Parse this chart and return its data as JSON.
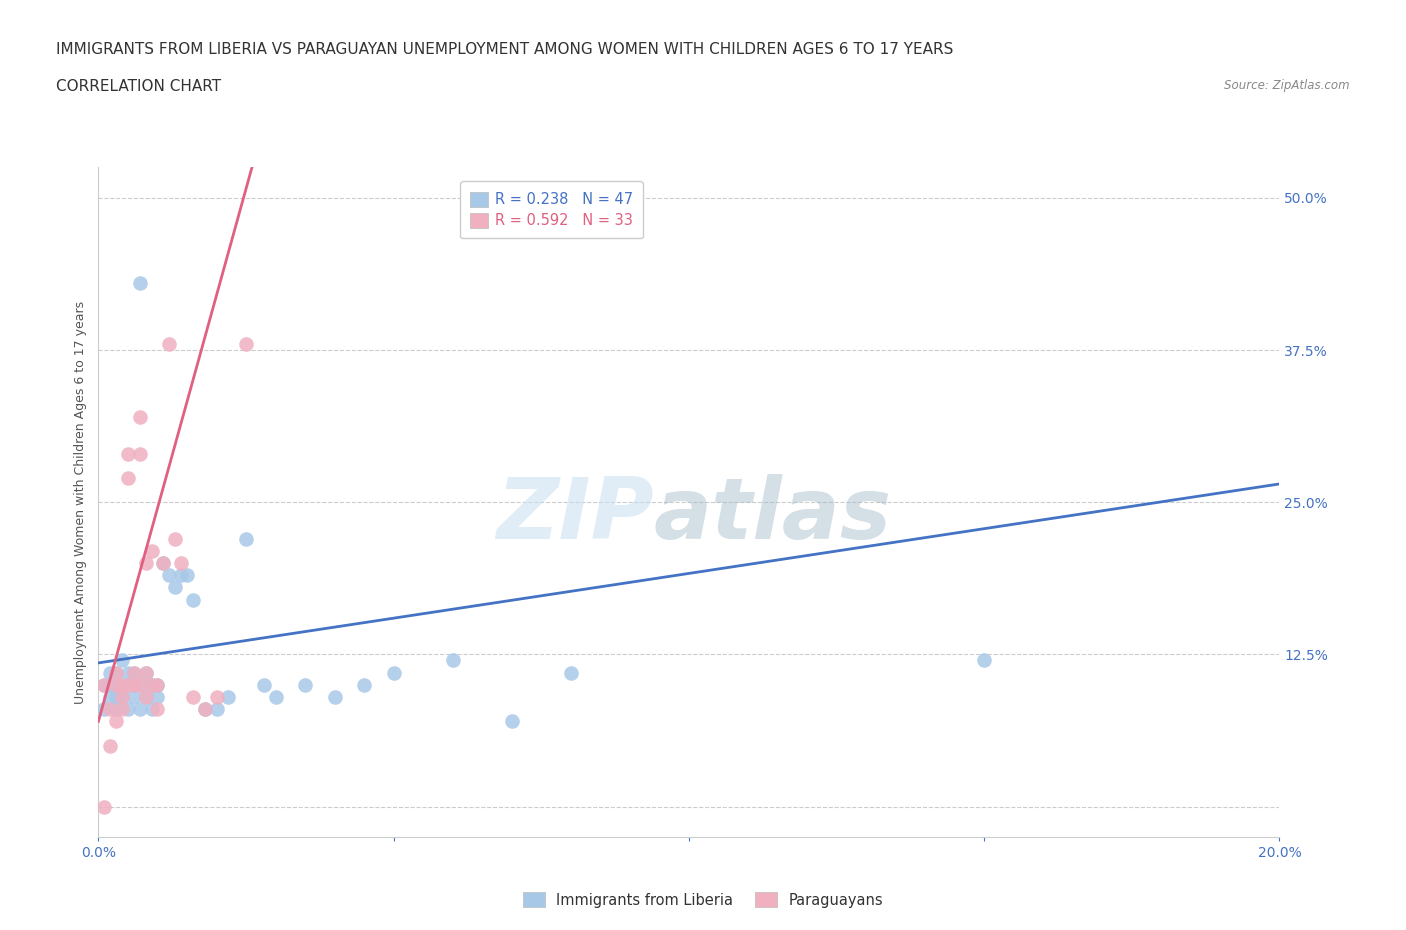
{
  "title_line1": "IMMIGRANTS FROM LIBERIA VS PARAGUAYAN UNEMPLOYMENT AMONG WOMEN WITH CHILDREN AGES 6 TO 17 YEARS",
  "title_line2": "CORRELATION CHART",
  "source_text": "Source: ZipAtlas.com",
  "ylabel": "Unemployment Among Women with Children Ages 6 to 17 years",
  "watermark_zip": "ZIP",
  "watermark_atlas": "atlas",
  "xlim": [
    0.0,
    0.2
  ],
  "ylim": [
    -0.025,
    0.525
  ],
  "xticks": [
    0.0,
    0.05,
    0.1,
    0.15,
    0.2
  ],
  "xtick_labels": [
    "0.0%",
    "",
    "",
    "",
    "20.0%"
  ],
  "yticks": [
    0.0,
    0.125,
    0.25,
    0.375,
    0.5
  ],
  "ytick_labels": [
    "",
    "12.5%",
    "25.0%",
    "37.5%",
    "50.0%"
  ],
  "grid_color": "#cccccc",
  "background_color": "#ffffff",
  "blue_color": "#a8c8e8",
  "pink_color": "#f0b0c0",
  "blue_line_color": "#4472c4",
  "pink_line_color": "#e06080",
  "legend_blue_label": "R = 0.238   N = 47",
  "legend_pink_label": "R = 0.592   N = 33",
  "legend_group_label_blue": "Immigrants from Liberia",
  "legend_group_label_pink": "Paraguayans",
  "title_fontsize": 11,
  "label_fontsize": 9,
  "tick_fontsize": 10,
  "axis_color": "#4472c4",
  "blue_scatter_x": [
    0.001,
    0.001,
    0.002,
    0.002,
    0.002,
    0.003,
    0.003,
    0.003,
    0.003,
    0.004,
    0.004,
    0.004,
    0.005,
    0.005,
    0.005,
    0.006,
    0.006,
    0.006,
    0.007,
    0.007,
    0.008,
    0.008,
    0.009,
    0.009,
    0.01,
    0.01,
    0.011,
    0.012,
    0.013,
    0.014,
    0.015,
    0.016,
    0.018,
    0.02,
    0.022,
    0.025,
    0.028,
    0.03,
    0.035,
    0.04,
    0.045,
    0.05,
    0.06,
    0.07,
    0.08,
    0.15,
    0.007
  ],
  "blue_scatter_y": [
    0.1,
    0.08,
    0.1,
    0.09,
    0.11,
    0.1,
    0.08,
    0.09,
    0.11,
    0.1,
    0.09,
    0.12,
    0.1,
    0.11,
    0.08,
    0.09,
    0.11,
    0.1,
    0.1,
    0.08,
    0.09,
    0.11,
    0.1,
    0.08,
    0.1,
    0.09,
    0.2,
    0.19,
    0.18,
    0.19,
    0.19,
    0.17,
    0.08,
    0.08,
    0.09,
    0.22,
    0.1,
    0.09,
    0.1,
    0.09,
    0.1,
    0.11,
    0.12,
    0.07,
    0.11,
    0.12,
    0.43
  ],
  "pink_scatter_x": [
    0.001,
    0.001,
    0.002,
    0.002,
    0.003,
    0.003,
    0.003,
    0.004,
    0.004,
    0.004,
    0.005,
    0.005,
    0.005,
    0.006,
    0.006,
    0.007,
    0.007,
    0.007,
    0.008,
    0.008,
    0.008,
    0.009,
    0.009,
    0.01,
    0.01,
    0.011,
    0.012,
    0.013,
    0.014,
    0.016,
    0.018,
    0.02,
    0.025
  ],
  "pink_scatter_y": [
    0.0,
    0.1,
    0.05,
    0.08,
    0.1,
    0.11,
    0.07,
    0.1,
    0.09,
    0.08,
    0.1,
    0.27,
    0.29,
    0.1,
    0.11,
    0.1,
    0.29,
    0.32,
    0.11,
    0.2,
    0.09,
    0.21,
    0.1,
    0.1,
    0.08,
    0.2,
    0.38,
    0.22,
    0.2,
    0.09,
    0.08,
    0.09,
    0.38
  ],
  "blue_line_x0": 0.0,
  "blue_line_x1": 0.2,
  "blue_line_y0": 0.118,
  "blue_line_y1": 0.265,
  "pink_line_x0": 0.0,
  "pink_line_x1": 0.026,
  "pink_line_y0": 0.07,
  "pink_line_y1": 0.525
}
